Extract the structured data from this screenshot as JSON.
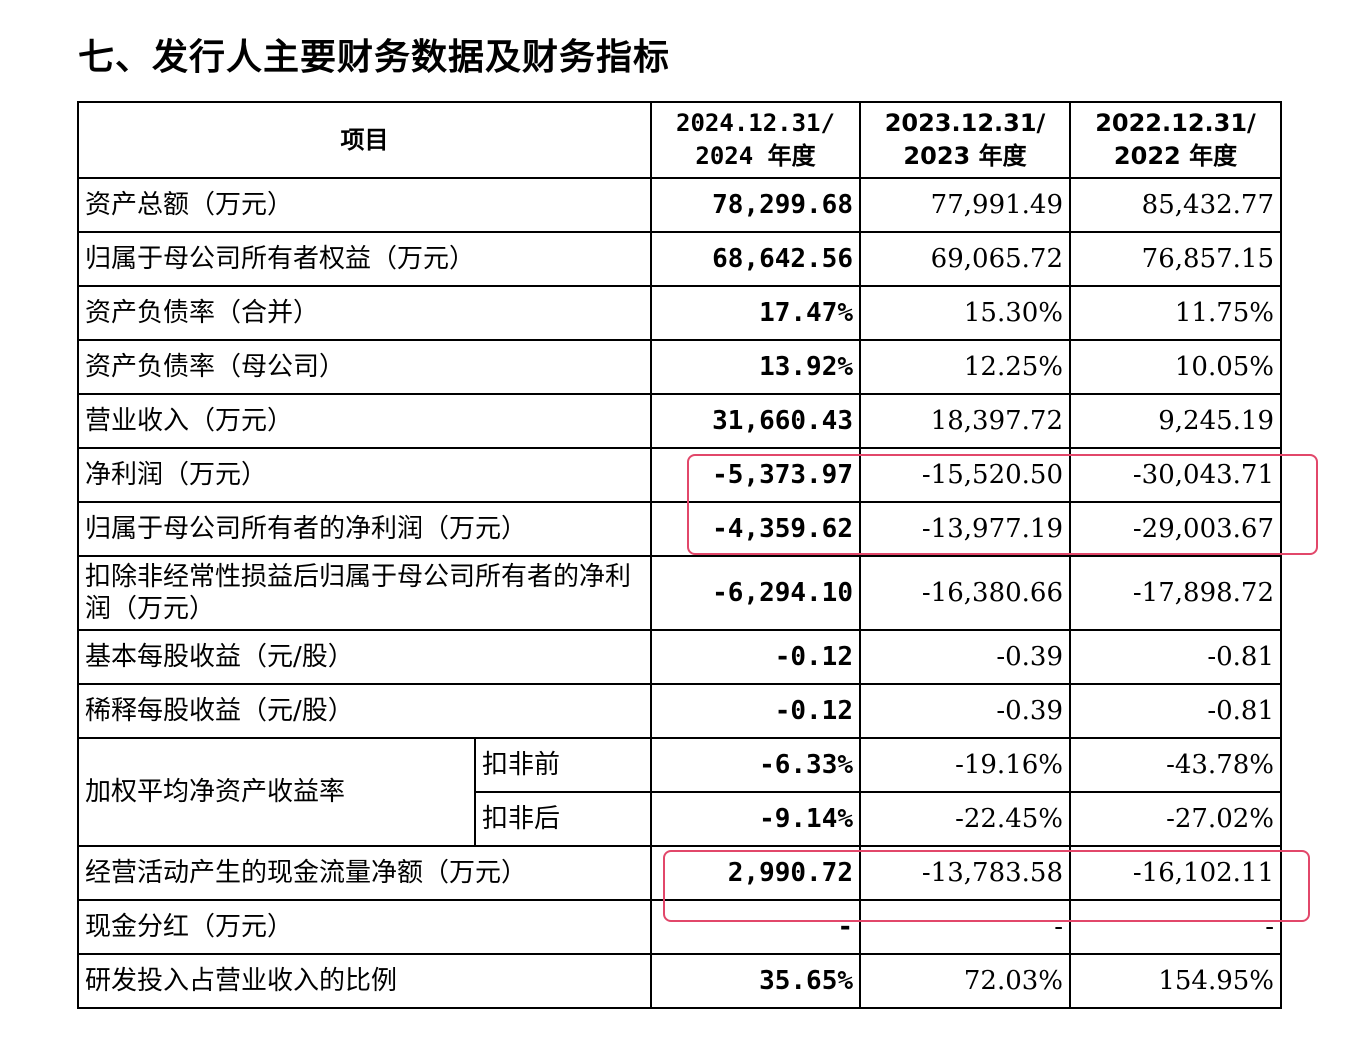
{
  "heading": "七、发行人主要财务数据及财务指标",
  "header": {
    "item": "项目",
    "col1_line1": "2024.12.31/",
    "col1_line2": "2024 年度",
    "col2_line1": "2023.12.31/",
    "col2_line2": "2023 年度",
    "col3_line1": "2022.12.31/",
    "col3_line2": "2022 年度"
  },
  "rows": [
    {
      "label": "资产总额（万元）",
      "v2024": "78,299.68",
      "v2023": "77,991.49",
      "v2022": "85,432.77"
    },
    {
      "label": "归属于母公司所有者权益（万元）",
      "v2024": "68,642.56",
      "v2023": "69,065.72",
      "v2022": "76,857.15"
    },
    {
      "label": "资产负债率（合并）",
      "v2024": "17.47%",
      "v2023": "15.30%",
      "v2022": "11.75%"
    },
    {
      "label": "资产负债率（母公司）",
      "v2024": "13.92%",
      "v2023": "12.25%",
      "v2022": "10.05%"
    },
    {
      "label": "营业收入（万元）",
      "v2024": "31,660.43",
      "v2023": "18,397.72",
      "v2022": "9,245.19"
    },
    {
      "label": "净利润（万元）",
      "v2024": "-5,373.97",
      "v2023": "-15,520.50",
      "v2022": "-30,043.71"
    },
    {
      "label": "归属于母公司所有者的净利润（万元）",
      "v2024": "-4,359.62",
      "v2023": "-13,977.19",
      "v2022": "-29,003.67"
    },
    {
      "label": "扣除非经常性损益后归属于母公司所有者的净利润（万元）",
      "v2024": "-6,294.10",
      "v2023": "-16,380.66",
      "v2022": "-17,898.72"
    },
    {
      "label": "基本每股收益（元/股）",
      "v2024": "-0.12",
      "v2023": "-0.39",
      "v2022": "-0.81"
    },
    {
      "label": "稀释每股收益（元/股）",
      "v2024": "-0.12",
      "v2023": "-0.39",
      "v2022": "-0.81"
    }
  ],
  "roe": {
    "label": "加权平均净资产收益率",
    "before": {
      "sub": "扣非前",
      "v2024": "-6.33%",
      "v2023": "-19.16%",
      "v2022": "-43.78%"
    },
    "after": {
      "sub": "扣非后",
      "v2024": "-9.14%",
      "v2023": "-22.45%",
      "v2022": "-27.02%"
    }
  },
  "rows2": [
    {
      "label": "经营活动产生的现金流量净额（万元）",
      "v2024": "2,990.72",
      "v2023": "-13,783.58",
      "v2022": "-16,102.11"
    },
    {
      "label": "现金分红（万元）",
      "v2024": "-",
      "v2023": "-",
      "v2022": "-"
    },
    {
      "label": "研发投入占营业收入的比例",
      "v2024": "35.65%",
      "v2023": "72.03%",
      "v2022": "154.95%"
    }
  ],
  "highlight_color": "#e2476a"
}
